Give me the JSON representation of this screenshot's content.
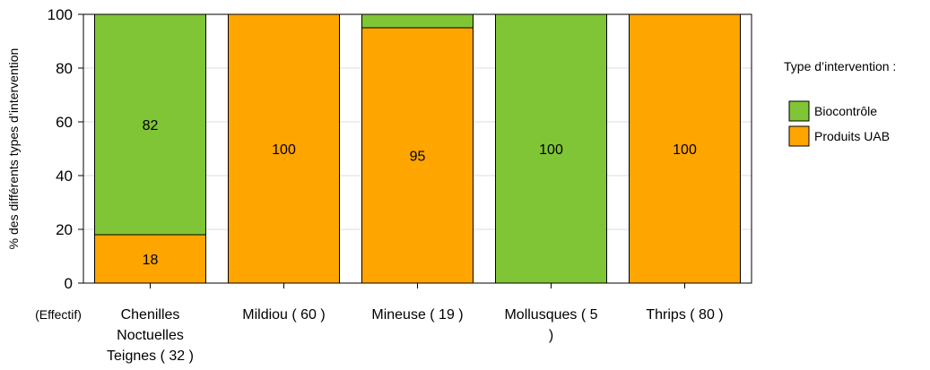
{
  "chart_data": {
    "type": "bar",
    "stacked": true,
    "ylabel": "% des différents types d’intervention",
    "xlabel": "",
    "x_prefix_label": "(Effectif)",
    "ylim": [
      0,
      100
    ],
    "yticks": [
      0,
      20,
      40,
      60,
      80,
      100
    ],
    "grid": true,
    "legend_position": "right",
    "legend_title": "Type d’intervention :",
    "categories": [
      [
        "Chenilles",
        "Noctuelles",
        "Teignes ( 32 )"
      ],
      [
        "Mildiou ( 60 )"
      ],
      [
        "Mineuse ( 19 )"
      ],
      [
        "Mollusques ( 5",
        ")"
      ],
      [
        "Thrips ( 80 )"
      ]
    ],
    "series": [
      {
        "name": "Produits UAB",
        "color": "#FFA500",
        "values": [
          18,
          100,
          95,
          0,
          100
        ],
        "labels": [
          "18",
          "100",
          "95",
          "",
          "100"
        ]
      },
      {
        "name": "Biocontrôle",
        "color": "#80C535",
        "values": [
          82,
          0,
          5,
          100,
          0
        ],
        "labels": [
          "82",
          "",
          "",
          "100",
          ""
        ]
      }
    ],
    "legend_order": [
      "Biocontrôle",
      "Produits UAB"
    ]
  }
}
